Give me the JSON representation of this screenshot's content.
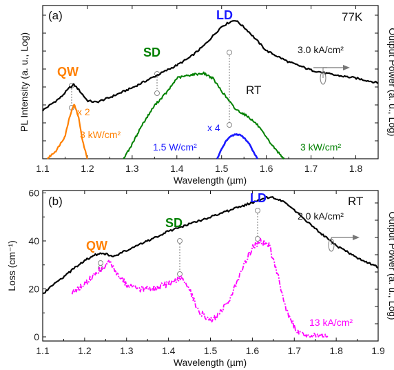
{
  "chart_data": [
    {
      "panel": "(a)",
      "type": "line",
      "xlabel": "Wavelength (µm)",
      "ylabel_left": "PL Intensity (a. u., Log)",
      "ylabel_right": "Output Power (a. u., Log)",
      "xlim": [
        1.1,
        1.85
      ],
      "x_ticks": [
        "1.1",
        "1.2",
        "1.3",
        "1.4",
        "1.5",
        "1.6",
        "1.7",
        "1.8"
      ],
      "grid": false,
      "labels": {
        "qw": "QW",
        "sd": "SD",
        "ld": "LD",
        "temp": "77K",
        "rt": "RT"
      },
      "annotations": {
        "output_density": "3.0 kA/cm²",
        "qw_scale": "x 2",
        "qw_density": "3 kW/cm²",
        "sd_density": "3 kW/cm²",
        "ld_scale": "x 4",
        "ld_density": "1.5 W/cm²"
      },
      "series": [
        {
          "color": "#000000",
          "x": [
            1.1,
            1.12,
            1.14,
            1.16,
            1.17,
            1.18,
            1.2,
            1.22,
            1.25,
            1.3,
            1.35,
            1.4,
            1.43,
            1.46,
            1.48,
            1.5,
            1.52,
            1.53,
            1.54,
            1.56,
            1.58,
            1.6,
            1.65,
            1.7,
            1.75,
            1.8,
            1.85
          ],
          "y": [
            3.0,
            3.4,
            3.8,
            4.4,
            4.6,
            4.3,
            3.6,
            3.5,
            3.8,
            4.4,
            5.1,
            5.8,
            6.3,
            7.0,
            7.6,
            8.2,
            8.5,
            8.6,
            8.4,
            7.9,
            7.3,
            6.7,
            6.0,
            5.5,
            5.2,
            5.0,
            4.7
          ]
        },
        {
          "color": "#ff8000",
          "x": [
            1.11,
            1.13,
            1.15,
            1.16,
            1.17,
            1.18,
            1.19,
            1.2
          ],
          "y": [
            0.0,
            0.5,
            1.4,
            2.6,
            3.4,
            2.6,
            1.0,
            0.0
          ]
        },
        {
          "color": "#008000",
          "x": [
            1.28,
            1.3,
            1.32,
            1.35,
            1.38,
            1.4,
            1.43,
            1.46,
            1.48,
            1.5,
            1.53,
            1.56,
            1.58,
            1.6,
            1.62,
            1.64
          ],
          "y": [
            0.0,
            0.9,
            2.0,
            3.3,
            4.2,
            5.0,
            5.2,
            5.3,
            5.0,
            4.2,
            3.1,
            2.6,
            2.1,
            1.3,
            0.6,
            0.0
          ]
        },
        {
          "color": "#1a1aff",
          "x": [
            1.49,
            1.5,
            1.51,
            1.52,
            1.53,
            1.54,
            1.55,
            1.56,
            1.57,
            1.58
          ],
          "y": [
            0.0,
            0.6,
            1.1,
            1.4,
            1.5,
            1.5,
            1.3,
            1.0,
            0.5,
            0.0
          ]
        }
      ]
    },
    {
      "panel": "(b)",
      "type": "line",
      "xlabel": "Wavelength (µm)",
      "ylabel_left": "Loss (cm⁻¹)",
      "ylabel_right": "Output Power (a. u., Log)",
      "xlim": [
        1.1,
        1.9
      ],
      "ylim": [
        0,
        65
      ],
      "x_ticks": [
        "1.1",
        "1.2",
        "1.3",
        "1.4",
        "1.5",
        "1.6",
        "1.7",
        "1.8",
        "1.9"
      ],
      "y_ticks": [
        "0",
        "20",
        "40",
        "60"
      ],
      "grid": false,
      "labels": {
        "qw": "QW",
        "sd": "SD",
        "ld": "LD",
        "rt": "RT"
      },
      "annotations": {
        "output_density": "2.0 kA/cm²",
        "loss_density": "13 kA/cm²"
      },
      "series": [
        {
          "color": "#000000",
          "x": [
            1.1,
            1.15,
            1.2,
            1.23,
            1.25,
            1.27,
            1.3,
            1.35,
            1.4,
            1.45,
            1.5,
            1.55,
            1.6,
            1.63,
            1.65,
            1.68,
            1.7,
            1.75,
            1.8,
            1.85,
            1.9
          ],
          "y": [
            18,
            25,
            32,
            34.5,
            34.5,
            33.5,
            36,
            40,
            44,
            47,
            50,
            53,
            56,
            58,
            58,
            56,
            53,
            45,
            38,
            33,
            29
          ]
        },
        {
          "color": "#ff00ff",
          "x": [
            1.17,
            1.2,
            1.23,
            1.26,
            1.28,
            1.3,
            1.33,
            1.36,
            1.4,
            1.43,
            1.45,
            1.47,
            1.5,
            1.52,
            1.55,
            1.58,
            1.6,
            1.62,
            1.64,
            1.66,
            1.68,
            1.7,
            1.72,
            1.74,
            1.76,
            1.78
          ],
          "y": [
            18,
            22,
            27,
            31,
            26,
            22,
            20,
            20,
            22,
            25,
            20,
            11,
            7,
            9,
            17,
            30,
            37,
            40,
            38,
            26,
            12,
            4,
            1,
            0.5,
            0.2,
            0.5
          ]
        }
      ]
    }
  ]
}
